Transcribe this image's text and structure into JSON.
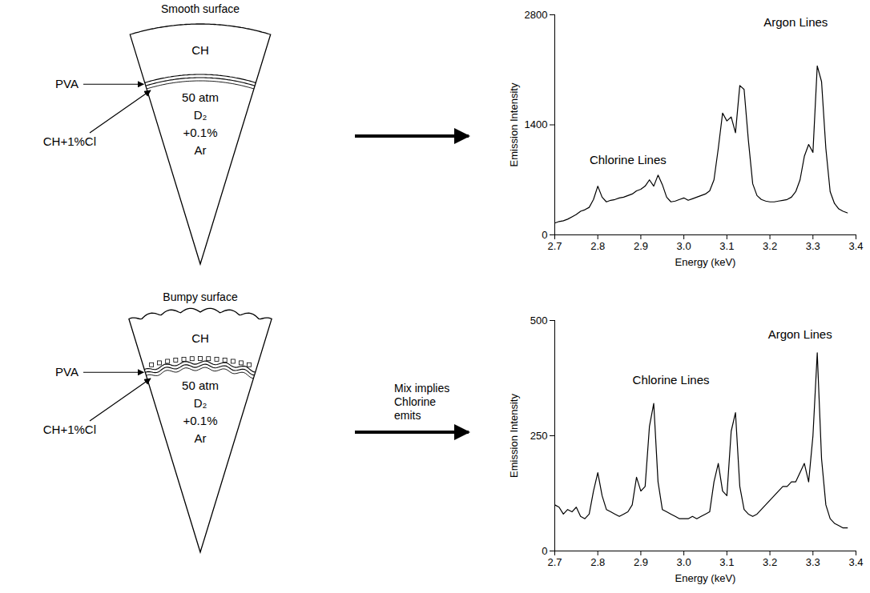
{
  "diagrams": [
    {
      "title": "Smooth surface",
      "surface": "smooth",
      "outer_layer": "CH",
      "pva_label": "PVA",
      "doped_label": "CH+1%Cl",
      "gas": [
        "50 atm",
        "D₂",
        "+0.1%",
        "Ar"
      ]
    },
    {
      "title": "Bumpy surface",
      "surface": "bumpy",
      "outer_layer": "CH",
      "pva_label": "PVA",
      "doped_label": "CH+1%Cl",
      "gas": [
        "50 atm",
        "D₂",
        "+0.1%",
        "Ar"
      ],
      "arrow_label": "Mix implies Chlorine emits"
    }
  ],
  "chart_data": [
    {
      "type": "line",
      "x_label": "Energy (keV)",
      "y_label": "Emission Intensity",
      "color": "#000000",
      "xlim": [
        2.7,
        3.4
      ],
      "xticks": [
        2.7,
        2.8,
        2.9,
        {
          "value": 3,
          "label": "3.0"
        },
        3.1,
        3.2,
        3.3,
        3.4
      ],
      "ylim": [
        0,
        2800
      ],
      "yticks": [
        0,
        1400,
        2800
      ],
      "x": [
        2.7,
        2.71,
        2.72,
        2.73,
        2.74,
        2.75,
        2.76,
        2.77,
        2.78,
        2.79,
        2.8,
        2.81,
        2.82,
        2.83,
        2.84,
        2.85,
        2.86,
        2.87,
        2.88,
        2.89,
        2.9,
        2.91,
        2.92,
        2.93,
        2.94,
        2.95,
        2.96,
        2.97,
        2.98,
        2.99,
        3.0,
        3.01,
        3.02,
        3.03,
        3.04,
        3.05,
        3.06,
        3.07,
        3.08,
        3.09,
        3.1,
        3.11,
        3.12,
        3.13,
        3.14,
        3.15,
        3.16,
        3.17,
        3.18,
        3.19,
        3.2,
        3.21,
        3.22,
        3.23,
        3.24,
        3.25,
        3.26,
        3.27,
        3.28,
        3.29,
        3.3,
        3.31,
        3.32,
        3.33,
        3.34,
        3.35,
        3.36,
        3.37,
        3.38
      ],
      "values": [
        150,
        170,
        180,
        200,
        230,
        260,
        300,
        320,
        350,
        450,
        620,
        480,
        420,
        440,
        450,
        470,
        480,
        500,
        520,
        560,
        580,
        620,
        700,
        620,
        760,
        640,
        480,
        420,
        430,
        450,
        470,
        440,
        460,
        480,
        500,
        520,
        560,
        700,
        1100,
        1550,
        1450,
        1500,
        1300,
        1900,
        1850,
        1200,
        650,
        500,
        450,
        430,
        420,
        420,
        430,
        440,
        450,
        480,
        550,
        700,
        1000,
        1150,
        1050,
        2150,
        1950,
        1100,
        550,
        400,
        330,
        300,
        280
      ],
      "annotations": [
        {
          "text": "Chlorine Lines",
          "x": 2.87,
          "y": 950
        },
        {
          "text": "Argon Lines",
          "x": 3.26,
          "y": 2700
        }
      ]
    },
    {
      "type": "line",
      "x_label": "Energy (keV)",
      "y_label": "Emission Intensity",
      "color": "#000000",
      "xlim": [
        2.7,
        3.4
      ],
      "xticks": [
        2.7,
        2.8,
        2.9,
        {
          "value": 3,
          "label": "3.0"
        },
        3.1,
        3.2,
        3.3,
        3.4
      ],
      "ylim": [
        0,
        500
      ],
      "yticks": [
        0,
        250,
        500
      ],
      "x": [
        2.7,
        2.71,
        2.72,
        2.73,
        2.74,
        2.75,
        2.76,
        2.77,
        2.78,
        2.79,
        2.8,
        2.81,
        2.82,
        2.83,
        2.84,
        2.85,
        2.86,
        2.87,
        2.88,
        2.89,
        2.9,
        2.91,
        2.92,
        2.93,
        2.94,
        2.95,
        2.96,
        2.97,
        2.98,
        2.99,
        3.0,
        3.01,
        3.02,
        3.03,
        3.04,
        3.05,
        3.06,
        3.07,
        3.08,
        3.09,
        3.1,
        3.11,
        3.12,
        3.13,
        3.14,
        3.15,
        3.16,
        3.17,
        3.18,
        3.19,
        3.2,
        3.21,
        3.22,
        3.23,
        3.24,
        3.25,
        3.26,
        3.27,
        3.28,
        3.29,
        3.3,
        3.31,
        3.32,
        3.33,
        3.34,
        3.35,
        3.36,
        3.37,
        3.38
      ],
      "values": [
        100,
        95,
        80,
        90,
        85,
        95,
        75,
        70,
        80,
        130,
        170,
        120,
        90,
        85,
        80,
        75,
        80,
        85,
        100,
        160,
        130,
        140,
        270,
        320,
        150,
        90,
        85,
        80,
        75,
        70,
        70,
        70,
        75,
        70,
        75,
        80,
        85,
        150,
        190,
        130,
        120,
        260,
        300,
        140,
        90,
        80,
        75,
        80,
        90,
        100,
        110,
        120,
        130,
        140,
        140,
        150,
        150,
        170,
        190,
        150,
        250,
        430,
        200,
        100,
        70,
        60,
        55,
        50,
        50
      ],
      "annotations": [
        {
          "text": "Chlorine Lines",
          "x": 2.97,
          "y": 370
        },
        {
          "text": "Argon Lines",
          "x": 3.27,
          "y": 470
        }
      ]
    }
  ]
}
